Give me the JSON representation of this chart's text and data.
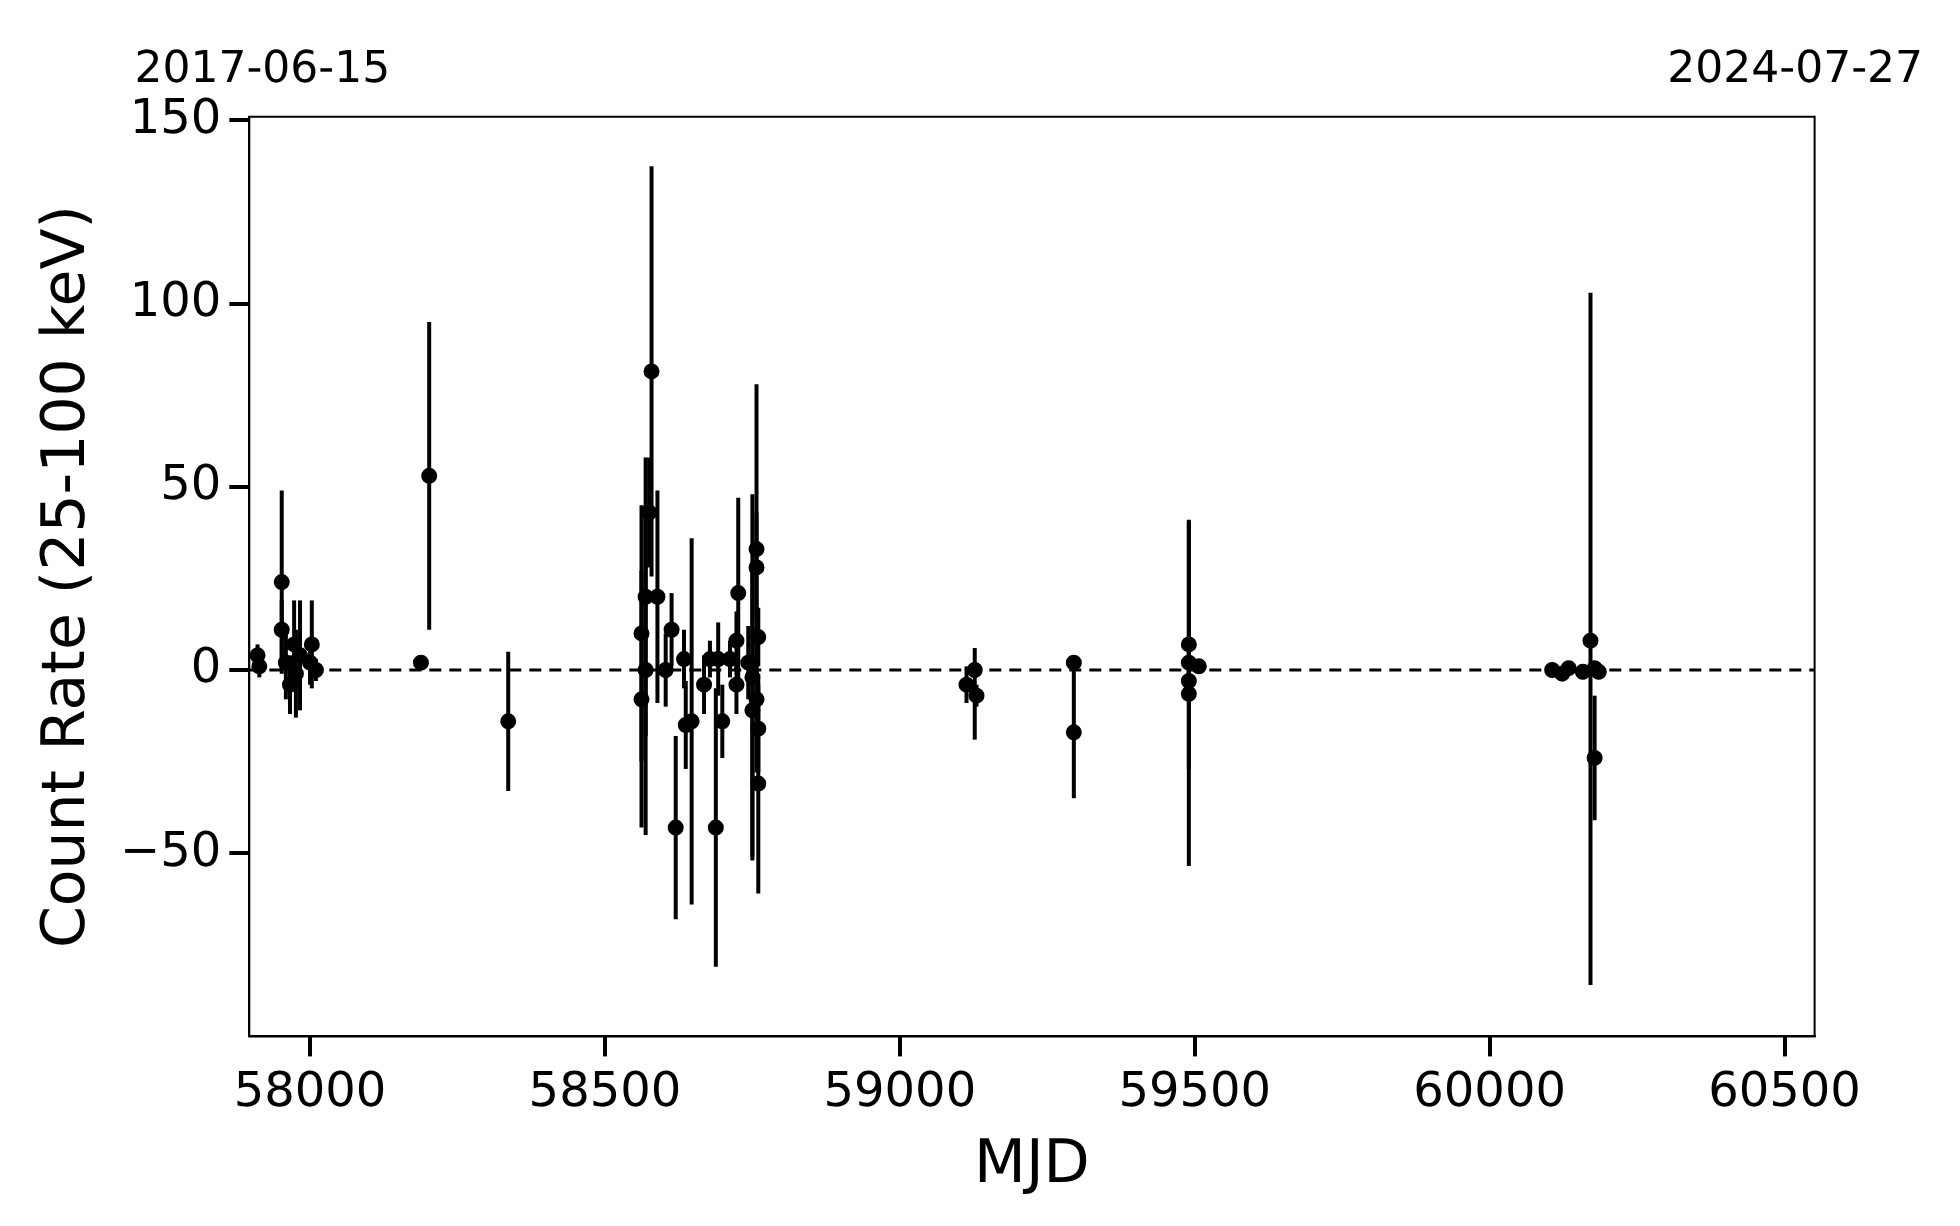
{
  "chart_data": {
    "type": "scatter",
    "xlabel": "MJD",
    "ylabel": "Count Rate (25-100 keV)",
    "marker": "circle",
    "xlim": [
      57897,
      60551
    ],
    "xticks": [
      58000,
      58500,
      59000,
      59500,
      60000,
      60500
    ],
    "x2lim": [
      "2017-05-24",
      "2024-08-29"
    ],
    "x2ticks": [
      "2017-06-15",
      "2024-07-27"
    ],
    "ylim": [
      -100,
      151
    ],
    "yticks": [
      {
        "value": -50,
        "label": "−50"
      },
      0,
      50,
      100,
      150
    ],
    "ref_lines": [
      {
        "axis": "y",
        "value": 0,
        "color": "#000000",
        "line_style": "dashed"
      }
    ],
    "series": [
      {
        "color": "#000000",
        "x": [
          57911,
          57914,
          57952,
          57952,
          57959,
          57966,
          57973,
          57976,
          57983,
          58000,
          58003,
          58010,
          58188,
          58202,
          58336,
          58579,
          58569,
          58575,
          58589,
          58562,
          58562,
          58569,
          58613,
          58603,
          58620,
          58637,
          58647,
          58634,
          58668,
          58678,
          58688,
          58699,
          58692,
          58712,
          58726,
          58723,
          58723,
          58743,
          58750,
          58757,
          58757,
          58760,
          58757,
          58760,
          58760,
          58750,
          59127,
          59113,
          59130,
          59295,
          59295,
          59490,
          59490,
          59490,
          59490,
          59507,
          60171,
          60178,
          60106,
          60123,
          60134,
          60158,
          60178,
          60185
        ],
        "values": [
          4,
          1,
          24,
          11,
          2,
          -4,
          7,
          -1,
          4,
          2,
          7,
          0,
          2,
          53,
          -14,
          81.5,
          20,
          43,
          20,
          10,
          -8,
          0,
          11,
          0,
          -43,
          -15,
          -14,
          3,
          -4,
          3,
          -43,
          -14,
          3,
          3,
          21,
          8,
          -4,
          2,
          -2,
          33,
          28,
          9,
          -8,
          -16,
          -31,
          -11,
          0,
          -4,
          -7,
          2,
          -17,
          7,
          2,
          -3,
          -6.5,
          1,
          8,
          -24,
          0,
          -1,
          0.5,
          -0.5,
          0.5,
          -0.5
        ],
        "errors": [
          3,
          3,
          25,
          8,
          10,
          8,
          12,
          12,
          15,
          6,
          12,
          3,
          2,
          42,
          19,
          56,
          38,
          15,
          29,
          35,
          35,
          45,
          10,
          10,
          25,
          12,
          50,
          8,
          8,
          5,
          38,
          10,
          10,
          5,
          26,
          8,
          8,
          10,
          50,
          45,
          15,
          8,
          20,
          12,
          30,
          40,
          [
            -19,
            6
          ],
          5,
          3,
          2,
          18,
          34,
          3,
          3,
          47,
          2,
          [
            -86,
            103
          ],
          17,
          2,
          2,
          2,
          2,
          2,
          2
        ]
      }
    ]
  }
}
